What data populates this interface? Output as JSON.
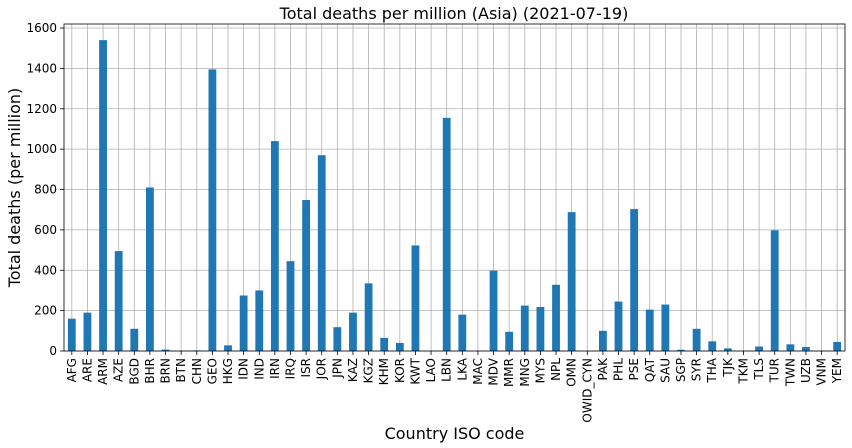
{
  "chart_data": {
    "type": "bar",
    "title": "Total deaths per million (Asia) (2021-07-19)",
    "xlabel": "Country ISO code",
    "ylabel": "Total deaths (per million)",
    "ylim": [
      0,
      1620
    ],
    "yticks": [
      0,
      200,
      400,
      600,
      800,
      1000,
      1200,
      1400,
      1600
    ],
    "grid": true,
    "bar_color": "#1f77b4",
    "categories": [
      "AFG",
      "ARE",
      "ARM",
      "AZE",
      "BGD",
      "BHR",
      "BRN",
      "BTN",
      "CHN",
      "GEO",
      "HKG",
      "IDN",
      "IND",
      "IRN",
      "IRQ",
      "ISR",
      "JOR",
      "JPN",
      "KAZ",
      "KGZ",
      "KHM",
      "KOR",
      "KWT",
      "LAO",
      "LBN",
      "LKA",
      "MAC",
      "MDV",
      "MMR",
      "MNG",
      "MYS",
      "NPL",
      "OMN",
      "OWID_CYN",
      "PAK",
      "PHL",
      "PSE",
      "QAT",
      "SAU",
      "SGP",
      "SYR",
      "THA",
      "TJK",
      "TKM",
      "TLS",
      "TUR",
      "TWN",
      "UZB",
      "VNM",
      "YEM"
    ],
    "values": [
      160,
      190,
      1540,
      495,
      110,
      810,
      7,
      1,
      3,
      1395,
      28,
      275,
      300,
      1040,
      445,
      748,
      970,
      118,
      190,
      335,
      65,
      40,
      523,
      0,
      1155,
      180,
      0,
      398,
      95,
      225,
      218,
      328,
      688,
      0,
      100,
      245,
      703,
      205,
      230,
      6,
      110,
      48,
      13,
      0,
      22,
      598,
      33,
      20,
      1,
      45
    ]
  }
}
